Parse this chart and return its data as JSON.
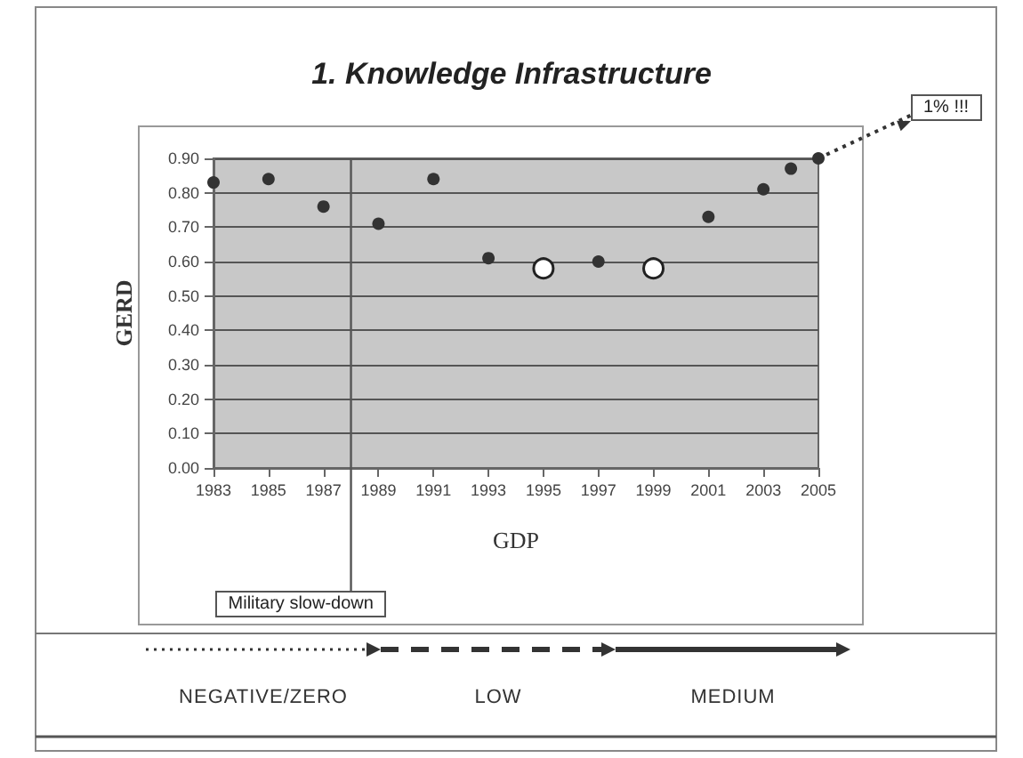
{
  "chart_data": {
    "type": "scatter",
    "title": "1. Knowledge Infrastructure",
    "xlabel": "GDP",
    "ylabel": "GERD",
    "series": [
      {
        "color": "#333333",
        "x": [
          1983,
          1985,
          1987,
          1989,
          1991,
          1993,
          1997,
          2001,
          2003,
          2004,
          2005
        ],
        "values": [
          0.83,
          0.84,
          0.76,
          0.71,
          0.84,
          0.61,
          0.6,
          0.73,
          0.81,
          0.87,
          0.9
        ]
      },
      {
        "color": "#ffffff",
        "x": [
          1995,
          1999
        ],
        "values": [
          0.58,
          0.58
        ]
      }
    ],
    "xlim": [
      1983,
      2005
    ],
    "xticks": [
      1983,
      1985,
      1987,
      1989,
      1991,
      1993,
      1995,
      1997,
      1999,
      2001,
      2003,
      2005
    ],
    "ylim": [
      0,
      0.9
    ],
    "yticks": [
      {
        "value": 0,
        "label": "0.00"
      },
      {
        "value": 0.1,
        "label": "0.10"
      },
      {
        "value": 0.2,
        "label": "0.20"
      },
      {
        "value": 0.3,
        "label": "0.30"
      },
      {
        "value": 0.4,
        "label": "0.40"
      },
      {
        "value": 0.5,
        "label": "0.50"
      },
      {
        "value": 0.6,
        "label": "0.60"
      },
      {
        "value": 0.7,
        "label": "0.70"
      },
      {
        "value": 0.8,
        "label": "0.80"
      },
      {
        "value": 0.9,
        "label": "0.90"
      }
    ],
    "grid": "y",
    "marker": "circle",
    "ref_lines": [
      {
        "axis": "x",
        "value": 1988,
        "label": "Military slow-down"
      }
    ],
    "annotations": [
      {
        "text": "1% !!!",
        "x": 2005,
        "y": 0.9
      },
      "NEGATIVE/ZERO",
      "LOW",
      "MEDIUM"
    ]
  }
}
